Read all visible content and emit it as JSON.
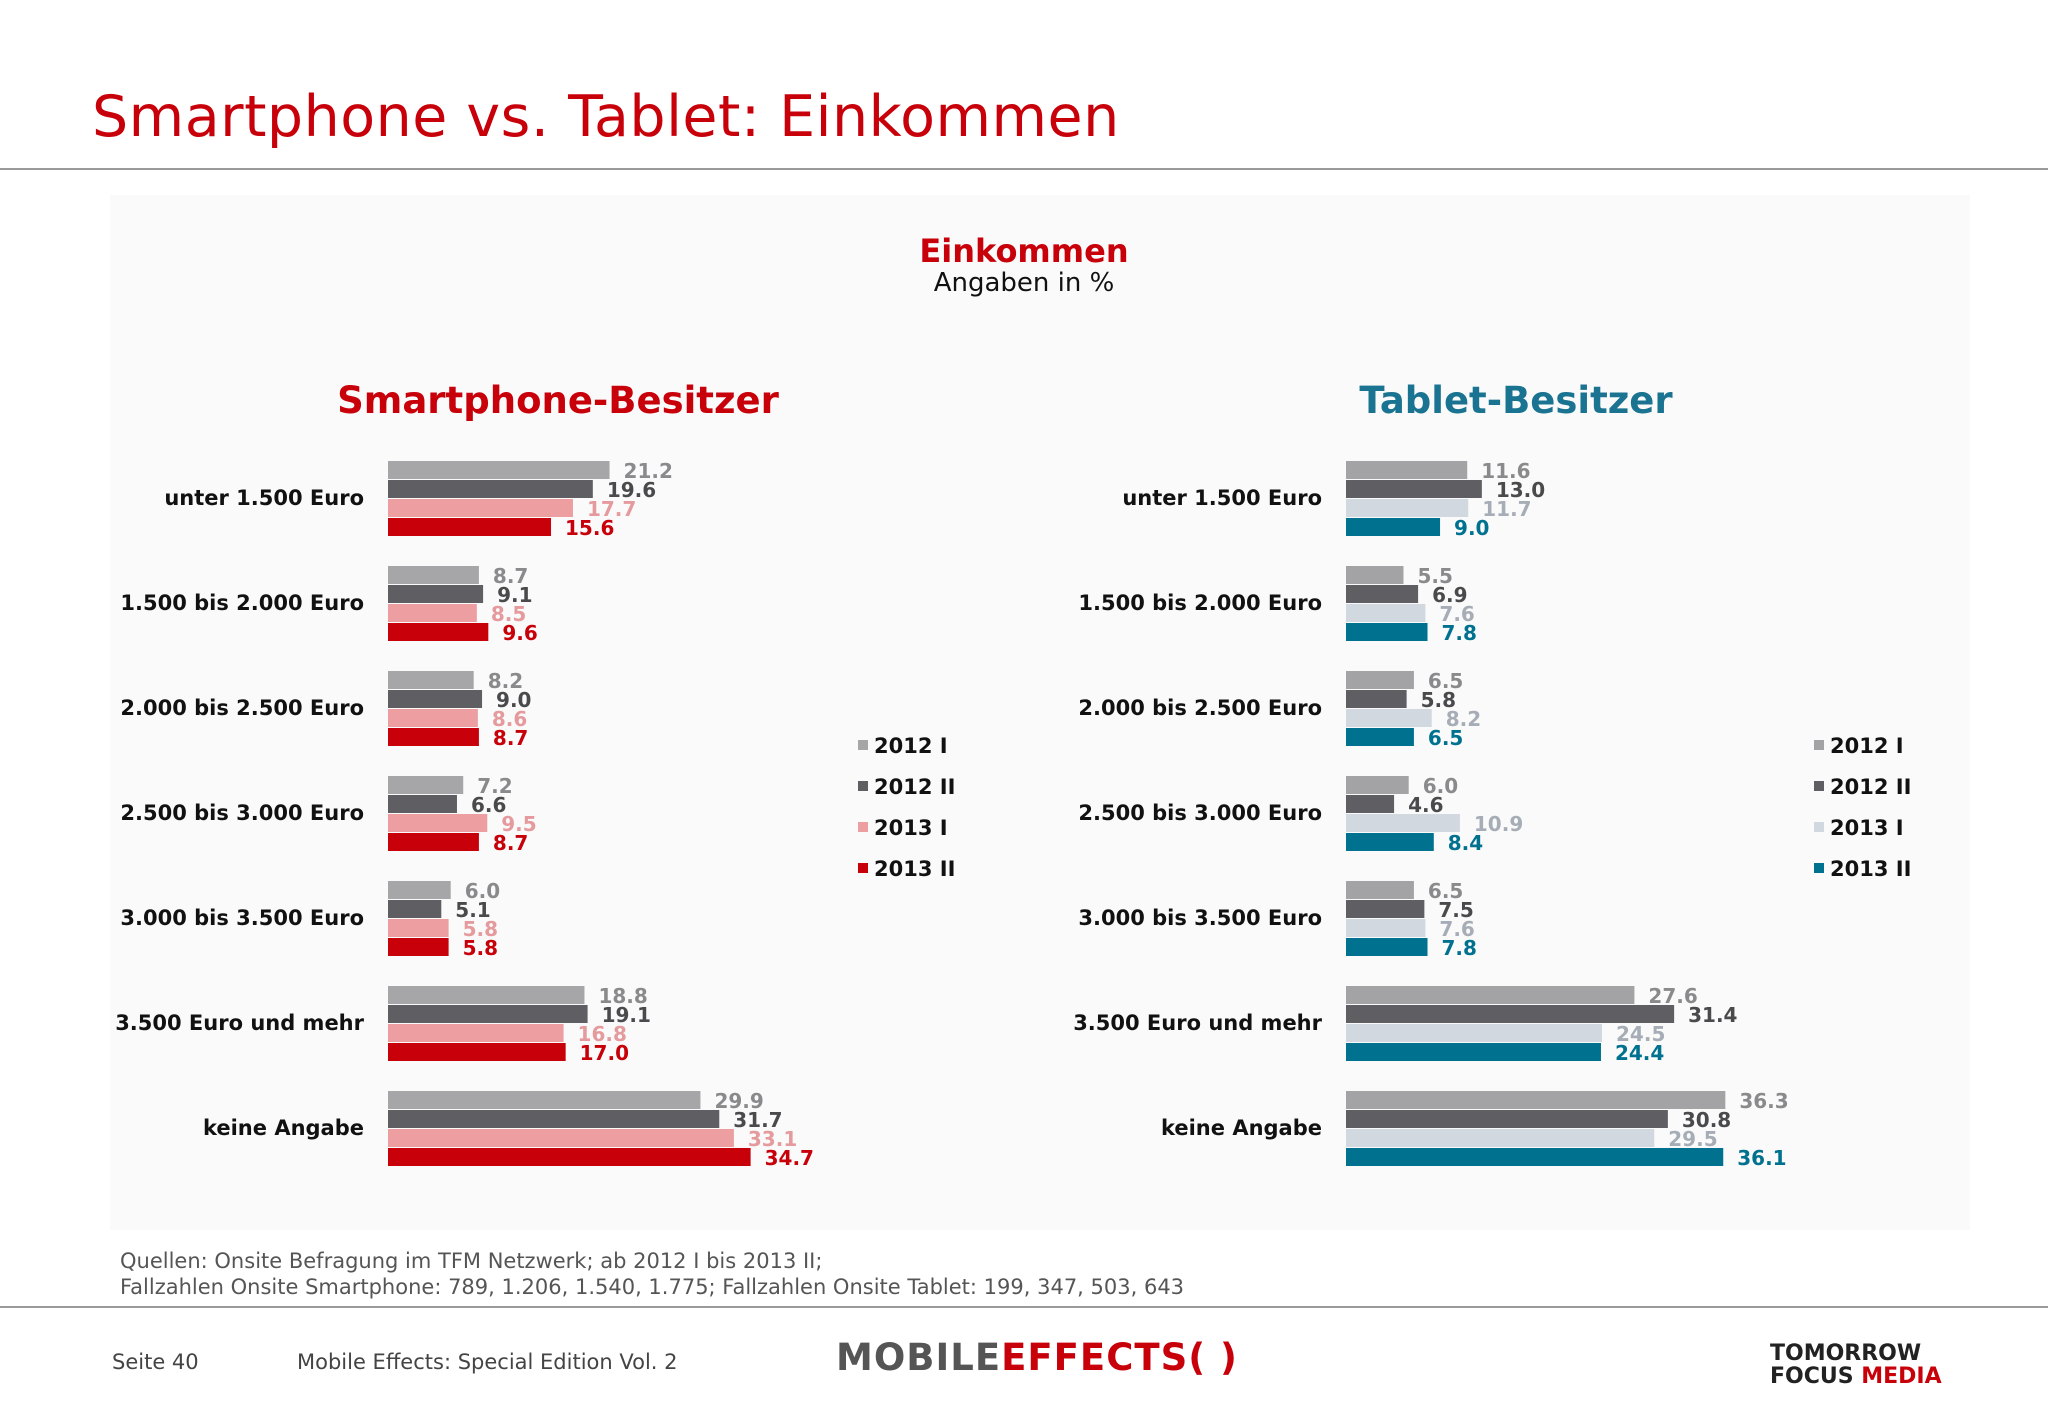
{
  "title": "Smartphone vs. Tablet: Einkommen",
  "heading": "Einkommen",
  "subheading": "Angaben in %",
  "categories": [
    "unter 1.500 Euro",
    "1.500 bis 2.000 Euro",
    "2.000 bis 2.500 Euro",
    "2.500 bis 3.000 Euro",
    "3.000 bis 3.500 Euro",
    "3.500 Euro und mehr",
    "keine Angabe"
  ],
  "legend": [
    "2012 I",
    "2012 II",
    "2013 I",
    "2013 II"
  ],
  "chart_data": [
    {
      "type": "bar",
      "orientation": "horizontal",
      "title": "Smartphone-Besitzer",
      "categories": [
        "unter 1.500 Euro",
        "1.500 bis 2.000 Euro",
        "2.000 bis 2.500 Euro",
        "2.500 bis 3.000 Euro",
        "3.000 bis 3.500 Euro",
        "3.500 Euro und mehr",
        "keine Angabe"
      ],
      "series": [
        {
          "name": "2012 I",
          "color": "#a6a6a8",
          "values": [
            21.2,
            8.7,
            8.2,
            7.2,
            6.0,
            18.8,
            29.9
          ]
        },
        {
          "name": "2012 II",
          "color": "#5f5e62",
          "values": [
            19.6,
            9.1,
            9.0,
            6.6,
            5.1,
            19.1,
            31.7
          ]
        },
        {
          "name": "2013 I",
          "color": "#ec9ea0",
          "values": [
            17.7,
            8.5,
            8.6,
            9.5,
            5.8,
            16.8,
            33.1
          ]
        },
        {
          "name": "2013 II",
          "color": "#c8000a",
          "values": [
            15.6,
            9.6,
            8.7,
            8.7,
            5.8,
            17.0,
            34.7
          ]
        }
      ],
      "legend_position": "right",
      "grid": false
    },
    {
      "type": "bar",
      "orientation": "horizontal",
      "title": "Tablet-Besitzer",
      "categories": [
        "unter 1.500 Euro",
        "1.500 bis 2.000 Euro",
        "2.000 bis 2.500 Euro",
        "2.500 bis 3.000 Euro",
        "3.000 bis 3.500 Euro",
        "3.500 Euro und mehr",
        "keine Angabe"
      ],
      "series": [
        {
          "name": "2012 I",
          "color": "#a3a3a6",
          "values": [
            11.6,
            5.5,
            6.5,
            6.0,
            6.5,
            27.6,
            36.3
          ]
        },
        {
          "name": "2012 II",
          "color": "#5f5e62",
          "values": [
            13.0,
            6.9,
            5.8,
            4.6,
            7.5,
            31.4,
            30.8
          ]
        },
        {
          "name": "2013 I",
          "color": "#d2d8e0",
          "values": [
            11.7,
            7.6,
            8.2,
            10.9,
            7.6,
            24.5,
            29.5
          ]
        },
        {
          "name": "2013 II",
          "color": "#00718f",
          "values": [
            9.0,
            7.8,
            6.5,
            8.4,
            7.8,
            24.4,
            36.1
          ]
        }
      ],
      "legend_position": "right",
      "grid": false
    }
  ],
  "sources": {
    "line1": "Quellen: Onsite Befragung im TFM Netzwerk; ab 2012 I bis 2013 II;",
    "line2": "Fallzahlen Onsite Smartphone: 789, 1.206, 1.540, 1.775; Fallzahlen Onsite Tablet: 199, 347, 503, 643"
  },
  "footer": {
    "page": "Seite 40",
    "publication": "Mobile Effects: Special Edition Vol. 2",
    "logo_left_a": "MOBILE",
    "logo_left_b": "EFFECTS",
    "logo_left_c": "( )",
    "logo_right_line1": "TOMORROW",
    "logo_right_line2a": "FOCUS ",
    "logo_right_line2b": "MEDIA"
  }
}
